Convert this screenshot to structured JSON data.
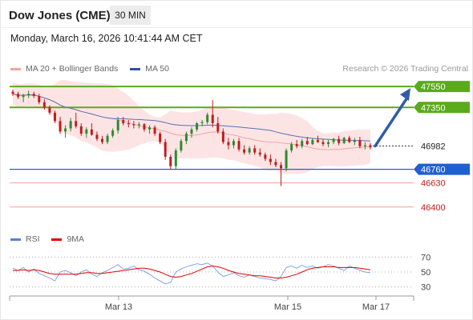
{
  "header": {
    "instrument": "Dow Jones (CME)",
    "timeframe": "30 MIN",
    "datetime": "Monday, March 16, 2026 10:41:44 AM CET"
  },
  "legend": {
    "ma20_label": "MA 20 + Bollinger Bands",
    "ma20_color": "#f4a3a3",
    "ma50_label": "MA 50",
    "ma50_color": "#2f4f9f",
    "research": "Research © 2026 Trading Central"
  },
  "rsi_legend": {
    "rsi_label": "RSI",
    "rsi_color": "#5b7fd4",
    "ma9_label": "9MA",
    "ma9_color": "#e00000"
  },
  "colors": {
    "up": "#2e8b2e",
    "down": "#c01d1d",
    "resistance": "#5aab1c",
    "pivot": "#1f5fd1",
    "support": "#e85a5a",
    "arrow": "#2f5da8",
    "current": "#333333",
    "band": "#fde4e4"
  },
  "chart_data": [
    {
      "type": "candlestick",
      "instrument": "Dow Jones (CME)",
      "timeframe": "30 MIN",
      "ylim": [
        46200,
        47650
      ],
      "x_ticks": [
        "Mar 13",
        "Mar 15",
        "Mar 17"
      ],
      "current_price": 46982,
      "levels": [
        {
          "value": 47550,
          "label": "47550",
          "kind": "resistance"
        },
        {
          "value": 47350,
          "label": "47350",
          "kind": "resistance"
        },
        {
          "value": 46982,
          "label": "46982",
          "kind": "current"
        },
        {
          "value": 46760,
          "label": "46760",
          "kind": "pivot"
        },
        {
          "value": 46630,
          "label": "46630",
          "kind": "support"
        },
        {
          "value": 46400,
          "label": "46400",
          "kind": "support"
        }
      ],
      "candles": [
        [
          47500,
          47520,
          47460,
          47480
        ],
        [
          47480,
          47500,
          47430,
          47450
        ],
        [
          47450,
          47480,
          47400,
          47470
        ],
        [
          47470,
          47510,
          47440,
          47480
        ],
        [
          47480,
          47500,
          47440,
          47460
        ],
        [
          47460,
          47480,
          47380,
          47400
        ],
        [
          47400,
          47430,
          47330,
          47350
        ],
        [
          47350,
          47370,
          47280,
          47300
        ],
        [
          47300,
          47320,
          47200,
          47220
        ],
        [
          47220,
          47260,
          47100,
          47120
        ],
        [
          47120,
          47180,
          47060,
          47150
        ],
        [
          47150,
          47250,
          47120,
          47220
        ],
        [
          47220,
          47300,
          47150,
          47170
        ],
        [
          47170,
          47200,
          47080,
          47100
        ],
        [
          47100,
          47160,
          47060,
          47140
        ],
        [
          47140,
          47200,
          47080,
          47090
        ],
        [
          47090,
          47120,
          47030,
          47050
        ],
        [
          47050,
          47080,
          47000,
          47020
        ],
        [
          47020,
          47100,
          47000,
          47080
        ],
        [
          47080,
          47150,
          47060,
          47130
        ],
        [
          47130,
          47260,
          47100,
          47230
        ],
        [
          47230,
          47260,
          47180,
          47200
        ],
        [
          47200,
          47230,
          47160,
          47190
        ],
        [
          47190,
          47220,
          47150,
          47180
        ],
        [
          47180,
          47210,
          47150,
          47190
        ],
        [
          47190,
          47200,
          47120,
          47140
        ],
        [
          47140,
          47180,
          47100,
          47160
        ],
        [
          47160,
          47180,
          47080,
          47100
        ],
        [
          47100,
          47120,
          47000,
          47020
        ],
        [
          47020,
          47050,
          46850,
          46880
        ],
        [
          46880,
          46900,
          46760,
          46790
        ],
        [
          46790,
          46960,
          46760,
          46940
        ],
        [
          46940,
          47050,
          46920,
          47030
        ],
        [
          47030,
          47120,
          47000,
          47100
        ],
        [
          47100,
          47160,
          47060,
          47140
        ],
        [
          47140,
          47210,
          47120,
          47200
        ],
        [
          47200,
          47230,
          47170,
          47210
        ],
        [
          47210,
          47300,
          47190,
          47280
        ],
        [
          47280,
          47420,
          47160,
          47200
        ],
        [
          47200,
          47260,
          47100,
          47120
        ],
        [
          47120,
          47150,
          47000,
          47020
        ],
        [
          47020,
          47060,
          46950,
          46990
        ],
        [
          46990,
          47050,
          46960,
          47030
        ],
        [
          47030,
          47060,
          46930,
          46950
        ],
        [
          46950,
          46990,
          46900,
          46920
        ],
        [
          46920,
          46980,
          46900,
          46960
        ],
        [
          46960,
          46990,
          46900,
          46920
        ],
        [
          46920,
          46960,
          46880,
          46900
        ],
        [
          46900,
          46920,
          46840,
          46860
        ],
        [
          46860,
          46900,
          46800,
          46830
        ],
        [
          46830,
          46860,
          46780,
          46800
        ],
        [
          46800,
          46830,
          46600,
          46770
        ],
        [
          46770,
          46960,
          46740,
          46940
        ],
        [
          46940,
          47020,
          46920,
          47000
        ],
        [
          47000,
          47040,
          46960,
          46980
        ],
        [
          46980,
          47050,
          46960,
          47030
        ],
        [
          47030,
          47070,
          46990,
          47000
        ],
        [
          47000,
          47060,
          46990,
          47040
        ],
        [
          47040,
          47080,
          47010,
          47020
        ],
        [
          47020,
          47050,
          46980,
          47000
        ],
        [
          47000,
          47040,
          46970,
          47020
        ],
        [
          47020,
          47060,
          47000,
          47050
        ],
        [
          47050,
          47080,
          46990,
          47010
        ],
        [
          47010,
          47070,
          47000,
          47060
        ],
        [
          47060,
          47080,
          47010,
          47020
        ],
        [
          47020,
          47060,
          46990,
          47040
        ],
        [
          47040,
          47070,
          46960,
          46980
        ],
        [
          46980,
          47020,
          46950,
          46990
        ],
        [
          46990,
          47010,
          46950,
          46970
        ]
      ],
      "projection": {
        "from": 46982,
        "to": 47550
      }
    },
    {
      "type": "line",
      "name": "RSI",
      "ylim": [
        20,
        80
      ],
      "y_ticks": [
        70,
        50,
        30
      ],
      "series": [
        {
          "name": "RSI",
          "values": [
            55,
            52,
            56,
            50,
            54,
            48,
            45,
            42,
            38,
            50,
            52,
            49,
            45,
            50,
            53,
            47,
            44,
            49,
            52,
            56,
            60,
            54,
            55,
            58,
            53,
            51,
            47,
            42,
            38,
            34,
            36,
            50,
            54,
            57,
            59,
            61,
            60,
            62,
            58,
            50,
            44,
            46,
            49,
            45,
            43,
            46,
            44,
            42,
            41,
            40,
            38,
            44,
            56,
            58,
            55,
            59,
            56,
            58,
            55,
            57,
            60,
            58,
            55,
            52,
            58,
            55,
            52,
            50,
            49
          ]
        },
        {
          "name": "9MA",
          "values": [
            52,
            52,
            53,
            52,
            53,
            52,
            50,
            48,
            47,
            47,
            47,
            47,
            47,
            48,
            49,
            49,
            48,
            48,
            49,
            50,
            51,
            52,
            53,
            54,
            55,
            55,
            54,
            52,
            50,
            47,
            44,
            43,
            44,
            46,
            48,
            51,
            54,
            57,
            58,
            57,
            55,
            52,
            50,
            48,
            47,
            46,
            45,
            45,
            44,
            43,
            42,
            42,
            43,
            45,
            47,
            50,
            53,
            55,
            56,
            57,
            57,
            57,
            56,
            56,
            56,
            56,
            55,
            54,
            53
          ]
        }
      ]
    }
  ]
}
